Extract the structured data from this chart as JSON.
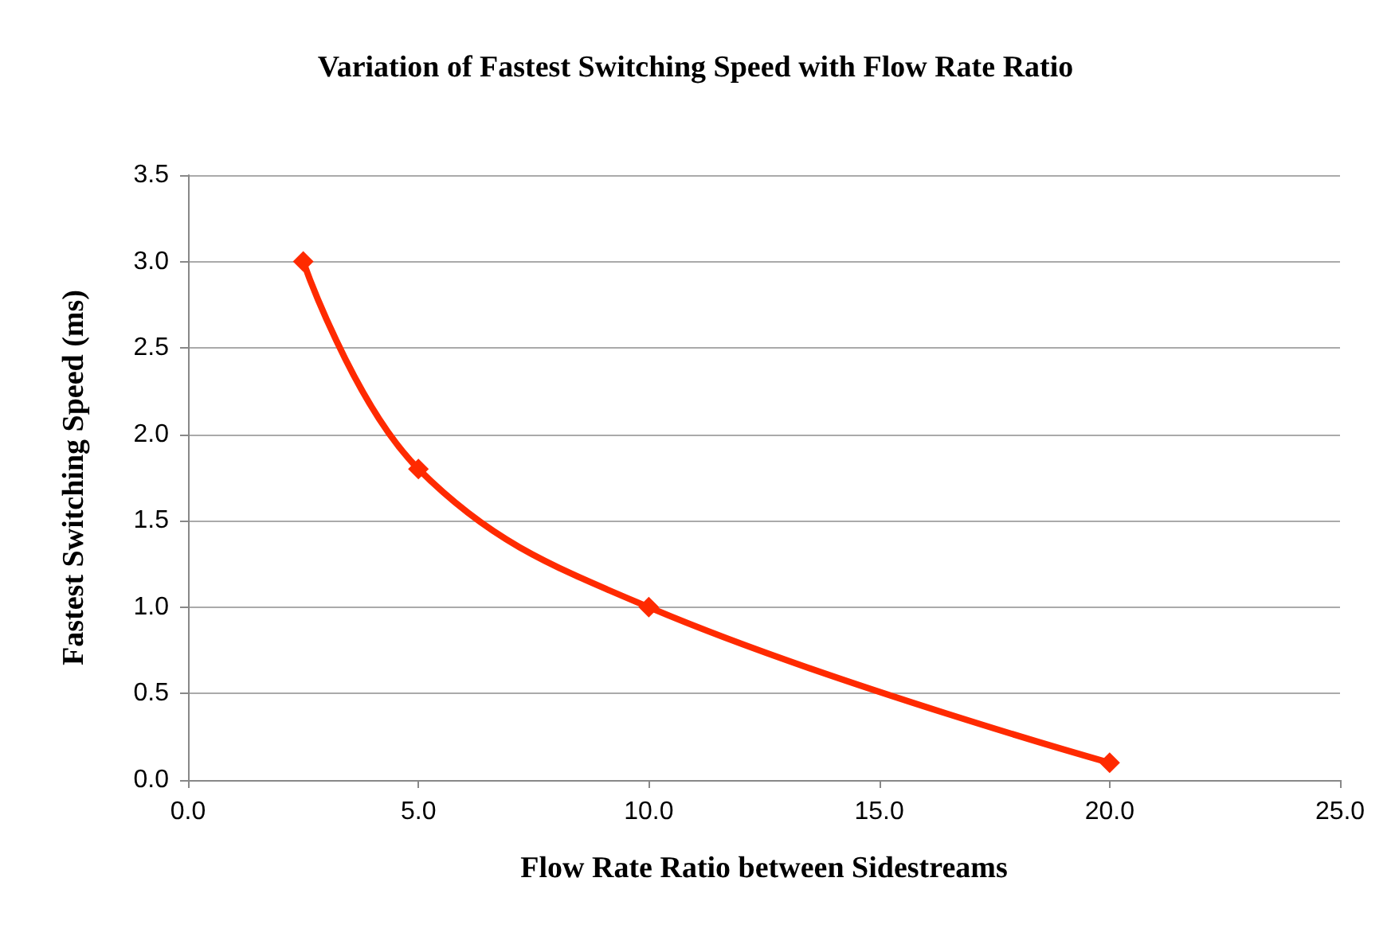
{
  "chart_data": {
    "type": "line",
    "title": "Variation of Fastest Switching Speed with Flow Rate Ratio",
    "xlabel": "Flow Rate Ratio between Sidestreams",
    "ylabel": "Fastest Switching Speed (ms)",
    "x": [
      2.5,
      5,
      10,
      20
    ],
    "series": [
      {
        "color": "#ff2a00",
        "values": [
          3.0,
          1.8,
          1.0,
          0.1
        ]
      }
    ],
    "xlim": [
      0,
      25
    ],
    "xticks": [
      {
        "value": 0,
        "label": "0.0"
      },
      {
        "value": 5,
        "label": "5.0"
      },
      {
        "value": 10,
        "label": "10.0"
      },
      {
        "value": 15,
        "label": "15.0"
      },
      {
        "value": 20,
        "label": "20.0"
      },
      {
        "value": 25,
        "label": "25.0"
      }
    ],
    "ylim": [
      0,
      3.5
    ],
    "yticks": [
      {
        "value": 0,
        "label": "0.0"
      },
      {
        "value": 0.5,
        "label": "0.5"
      },
      {
        "value": 1,
        "label": "1.0"
      },
      {
        "value": 1.5,
        "label": "1.5"
      },
      {
        "value": 2,
        "label": "2.0"
      },
      {
        "value": 2.5,
        "label": "2.5"
      },
      {
        "value": 3,
        "label": "3.0"
      },
      {
        "value": 3.5,
        "label": "3.5"
      }
    ],
    "grid": "y",
    "marker": "diamond",
    "line_style": "solid"
  }
}
